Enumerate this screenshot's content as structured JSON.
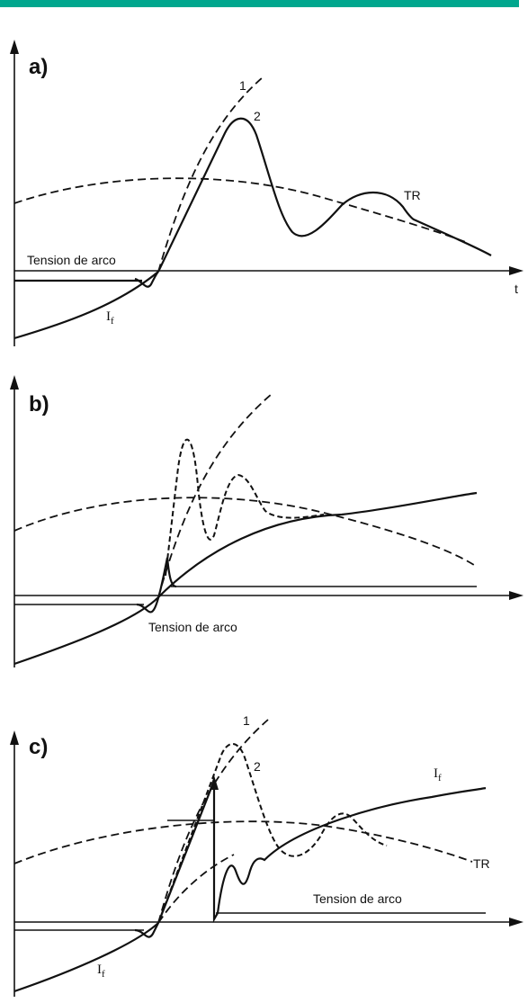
{
  "colors": {
    "accent_bar": "#00a78e",
    "ink": "#111111"
  },
  "panels": [
    {
      "letter": "a)",
      "time_axis": "t",
      "curve_1": "1",
      "curve_2": "2",
      "tr": "TR",
      "arc_voltage": "Tension de arco",
      "current": "I",
      "current_sub": "f"
    },
    {
      "letter": "b)",
      "arc_voltage": "Tension de arco"
    },
    {
      "letter": "c)",
      "curve_1": "1",
      "curve_2": "2",
      "current_top": "I",
      "current_top_sub": "f",
      "tr": "TR",
      "arc_voltage": "Tension de arco",
      "current": "I",
      "current_sub": "f"
    }
  ]
}
